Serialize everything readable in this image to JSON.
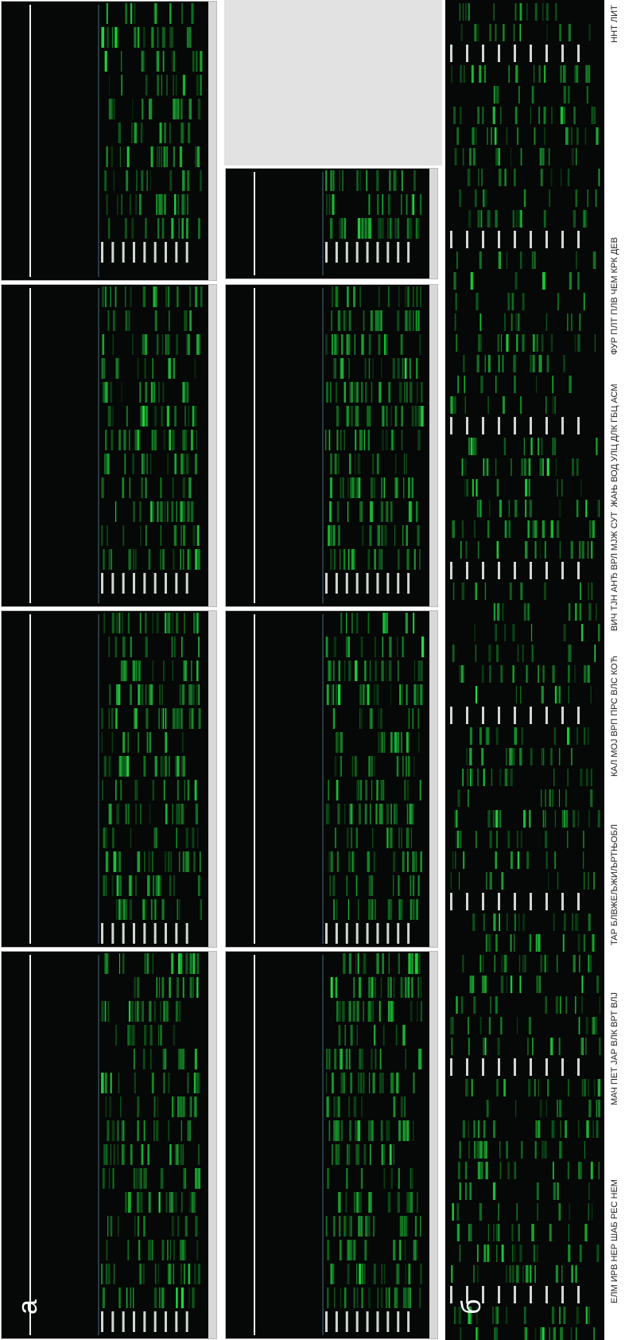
{
  "panel_a": {
    "label": "а"
  },
  "panel_b": {
    "label": "б",
    "lane_groups": [
      "ЕЛМ ИРВ НЕР ШАБ РЕС НЕМ",
      "МАЧ ПЕТ ЈАР ВЛК ВРТ ВЛЈ",
      "ТАР БЛВЖЕЉЖИЉРТЊОБЛ",
      "КАЛ МОЈ ВРП ПРС ВЛС КОЋ",
      "ВИЧ ТЈН АНЂ ВРЛ МЈЖ СУТ",
      "ЖАЊ ВОД УЛЦ ДЛК ГБЦ АСМ",
      "ФУР ПЛТ ПЛВ ЧЕМ КРК ДЕВ",
      "ННТ ЛИТ"
    ]
  }
}
